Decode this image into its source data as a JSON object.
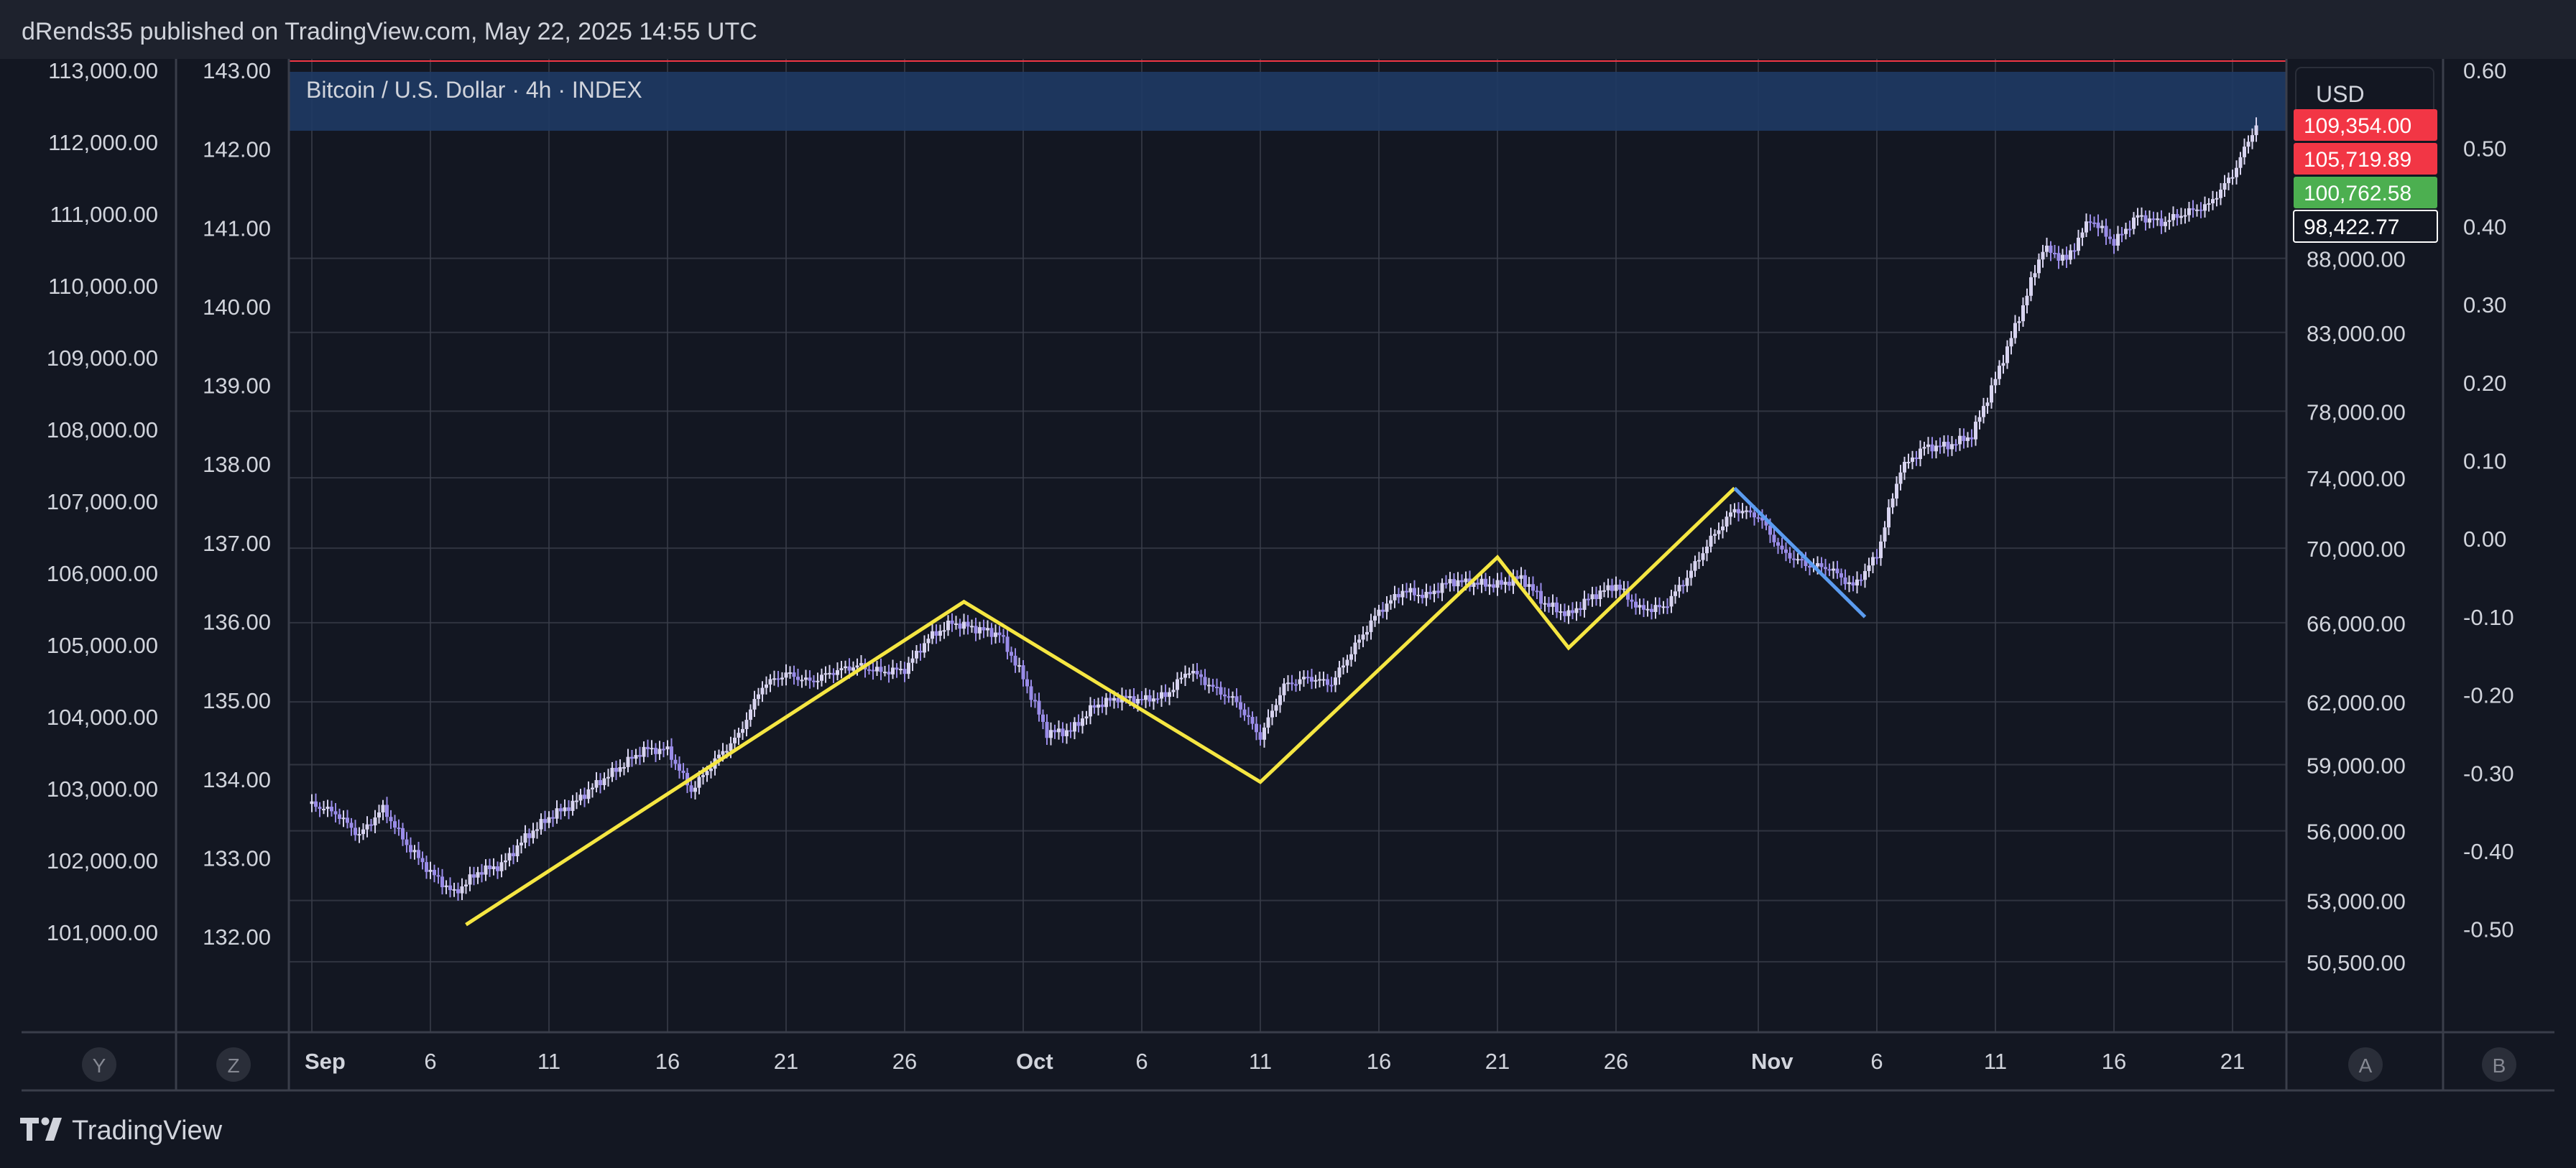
{
  "header": {
    "publish_line": "dRends35 published on TradingView.com, May 22, 2025 14:55 UTC"
  },
  "footer": {
    "brand": "TradingView",
    "brand_icon": "tradingview-logo-icon"
  },
  "colors": {
    "background": "#131722",
    "header_bg": "#1e222d",
    "grid": "#3a3e4a",
    "text": "#d1d4dc",
    "wave_line": "#f5e642",
    "correction_line": "#5b9cf0",
    "candle": "#9a8ce8",
    "candle_up": "#d8d4f0",
    "legend_band": "#1f3a64",
    "price_red": "#f23645",
    "price_green": "#4caf50"
  },
  "axis_buttons": [
    "Y",
    "Z",
    "A",
    "B"
  ],
  "chart_data": {
    "type": "candlestick",
    "title": "Bitcoin / U.S. Dollar · 4h · INDEX",
    "currency": "USD",
    "x_tick_labels": [
      "Sep",
      "6",
      "11",
      "16",
      "21",
      "26",
      "Oct",
      "6",
      "11",
      "16",
      "21",
      "26",
      "Nov",
      "6",
      "11",
      "16",
      "21"
    ],
    "x_range_days": [
      1,
      83
    ],
    "y_axes": {
      "far_left": {
        "ticks": [
          "113,000.00",
          "112,000.00",
          "111,000.00",
          "110,000.00",
          "109,000.00",
          "108,000.00",
          "107,000.00",
          "106,000.00",
          "105,000.00",
          "104,000.00",
          "103,000.00",
          "102,000.00",
          "101,000.00"
        ],
        "range": [
          100500,
          113000
        ]
      },
      "left": {
        "ticks": [
          "143.00",
          "142.00",
          "141.00",
          "140.00",
          "139.00",
          "138.00",
          "137.00",
          "136.00",
          "135.00",
          "134.00",
          "133.00",
          "132.00"
        ],
        "range": [
          131.6,
          143.0
        ]
      },
      "right_price": {
        "scale": "log",
        "ticks": [
          "88,000.00",
          "83,000.00",
          "78,000.00",
          "74,000.00",
          "70,000.00",
          "66,000.00",
          "62,000.00",
          "59,000.00",
          "56,000.00",
          "53,000.00",
          "50,500.00"
        ],
        "range": [
          49000,
          99000
        ]
      },
      "far_right": {
        "ticks": [
          "0.60",
          "0.50",
          "0.40",
          "0.30",
          "0.20",
          "0.10",
          "0.00",
          "-0.10",
          "-0.20",
          "-0.30",
          "-0.40",
          "-0.50"
        ],
        "range": [
          -0.55,
          0.6
        ]
      }
    },
    "price_labels": [
      {
        "value": "109,354.00",
        "color": "red"
      },
      {
        "value": "105,719.89",
        "color": "red"
      },
      {
        "value": "100,762.58",
        "color": "green"
      },
      {
        "value": "98,422.77",
        "color": "outline"
      }
    ],
    "price_path": [
      {
        "day": 1,
        "price": 57200
      },
      {
        "day": 2,
        "price": 56800
      },
      {
        "day": 3,
        "price": 55800
      },
      {
        "day": 4,
        "price": 57000
      },
      {
        "day": 5,
        "price": 55400
      },
      {
        "day": 6,
        "price": 54200
      },
      {
        "day": 7,
        "price": 53300
      },
      {
        "day": 8,
        "price": 54200
      },
      {
        "day": 9,
        "price": 54500
      },
      {
        "day": 10,
        "price": 55700
      },
      {
        "day": 11,
        "price": 56600
      },
      {
        "day": 12,
        "price": 57200
      },
      {
        "day": 13,
        "price": 58100
      },
      {
        "day": 14,
        "price": 58900
      },
      {
        "day": 15,
        "price": 59700
      },
      {
        "day": 16,
        "price": 59700
      },
      {
        "day": 17,
        "price": 57800
      },
      {
        "day": 18,
        "price": 59200
      },
      {
        "day": 19,
        "price": 60400
      },
      {
        "day": 20,
        "price": 62800
      },
      {
        "day": 21,
        "price": 63400
      },
      {
        "day": 22,
        "price": 63000
      },
      {
        "day": 23,
        "price": 63500
      },
      {
        "day": 24,
        "price": 63800
      },
      {
        "day": 25,
        "price": 63500
      },
      {
        "day": 26,
        "price": 63600
      },
      {
        "day": 27,
        "price": 65200
      },
      {
        "day": 28,
        "price": 66000
      },
      {
        "day": 29,
        "price": 65700
      },
      {
        "day": 30,
        "price": 65400
      },
      {
        "day": 31,
        "price": 63200
      },
      {
        "day": 32,
        "price": 60500
      },
      {
        "day": 33,
        "price": 60600
      },
      {
        "day": 34,
        "price": 61800
      },
      {
        "day": 35,
        "price": 62200
      },
      {
        "day": 36,
        "price": 62100
      },
      {
        "day": 37,
        "price": 62300
      },
      {
        "day": 38,
        "price": 63600
      },
      {
        "day": 39,
        "price": 62700
      },
      {
        "day": 40,
        "price": 62000
      },
      {
        "day": 41,
        "price": 60300
      },
      {
        "day": 42,
        "price": 62800
      },
      {
        "day": 43,
        "price": 63200
      },
      {
        "day": 44,
        "price": 62900
      },
      {
        "day": 45,
        "price": 64800
      },
      {
        "day": 46,
        "price": 66600
      },
      {
        "day": 47,
        "price": 67700
      },
      {
        "day": 48,
        "price": 67400
      },
      {
        "day": 49,
        "price": 68200
      },
      {
        "day": 50,
        "price": 68100
      },
      {
        "day": 51,
        "price": 68000
      },
      {
        "day": 52,
        "price": 68400
      },
      {
        "day": 53,
        "price": 67000
      },
      {
        "day": 54,
        "price": 66400
      },
      {
        "day": 55,
        "price": 67400
      },
      {
        "day": 56,
        "price": 68000
      },
      {
        "day": 57,
        "price": 66700
      },
      {
        "day": 58,
        "price": 66800
      },
      {
        "day": 59,
        "price": 68400
      },
      {
        "day": 60,
        "price": 70500
      },
      {
        "day": 61,
        "price": 72200
      },
      {
        "day": 62,
        "price": 71800
      },
      {
        "day": 63,
        "price": 69800
      },
      {
        "day": 64,
        "price": 69100
      },
      {
        "day": 65,
        "price": 68900
      },
      {
        "day": 66,
        "price": 67900
      },
      {
        "day": 67,
        "price": 69600
      },
      {
        "day": 68,
        "price": 74500
      },
      {
        "day": 69,
        "price": 75800
      },
      {
        "day": 70,
        "price": 75900
      },
      {
        "day": 71,
        "price": 76500
      },
      {
        "day": 72,
        "price": 80000
      },
      {
        "day": 73,
        "price": 84000
      },
      {
        "day": 74,
        "price": 88700
      },
      {
        "day": 75,
        "price": 87900
      },
      {
        "day": 76,
        "price": 90800
      },
      {
        "day": 77,
        "price": 89100
      },
      {
        "day": 78,
        "price": 91000
      },
      {
        "day": 79,
        "price": 90500
      },
      {
        "day": 80,
        "price": 91200
      },
      {
        "day": 81,
        "price": 91800
      },
      {
        "day": 82,
        "price": 94000
      },
      {
        "day": 83,
        "price": 97800
      }
    ],
    "wave_lines": [
      {
        "color": "yellow",
        "points": [
          {
            "day": 7.5,
            "price": 52000
          },
          {
            "day": 28.5,
            "price": 67100
          },
          {
            "day": 41,
            "price": 58200
          },
          {
            "day": 51,
            "price": 69500
          },
          {
            "day": 54,
            "price": 64700
          },
          {
            "day": 61,
            "price": 73400
          }
        ]
      },
      {
        "color": "blue",
        "points": [
          {
            "day": 61,
            "price": 73400
          },
          {
            "day": 66.5,
            "price": 66300
          }
        ]
      }
    ]
  }
}
